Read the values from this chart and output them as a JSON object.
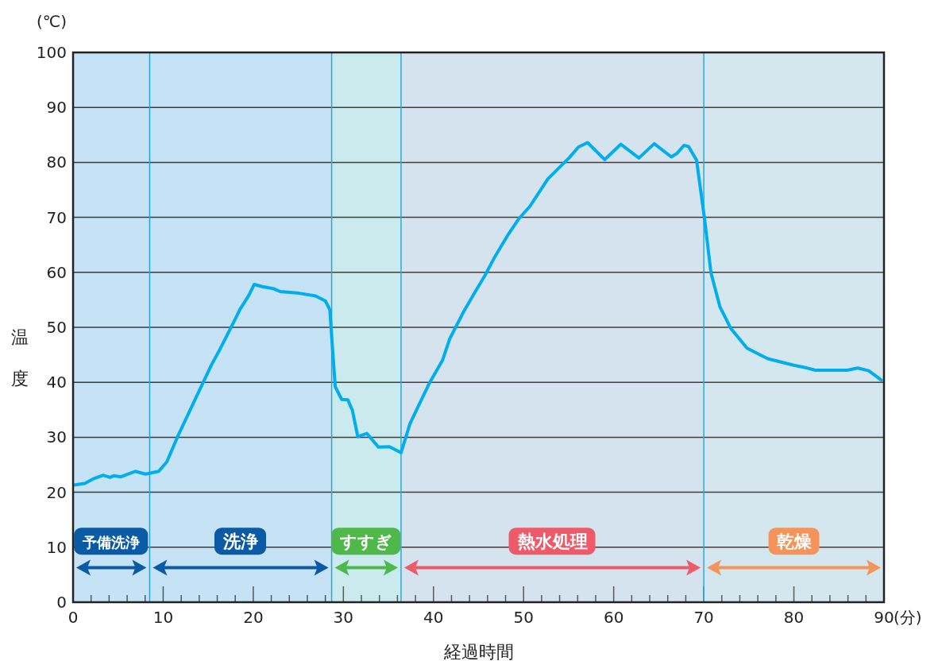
{
  "chart_data": {
    "type": "line",
    "xlabel": "経過時間",
    "ylabel": "温度",
    "annotations": [
      "(℃)",
      "(分)"
    ],
    "x": [
      0.1,
      1.3,
      2.2,
      3.35,
      4.1,
      4.5,
      5.3,
      6.9,
      8.05,
      9.5,
      10.4,
      11.6,
      14.5,
      15.4,
      16.3,
      18.0,
      18.5,
      19.5,
      20.1,
      21.0,
      22.3,
      23.0,
      25.1,
      26.9,
      28.0,
      28.5,
      28.8,
      29.1,
      29.8,
      30.5,
      31.0,
      31.6,
      32.6,
      33.9,
      35.1,
      36.4,
      37.4,
      39.5,
      41.0,
      41.8,
      43.3,
      44.5,
      45.7,
      46.8,
      48.3,
      49.5,
      50.7,
      52.7,
      55.1,
      56.1,
      57.1,
      59.0,
      60.8,
      62.8,
      64.5,
      66.4,
      67.0,
      67.8,
      68.3,
      69.2,
      70.1,
      70.8,
      71.8,
      73.0,
      74.8,
      77.1,
      80.0,
      81.2,
      82.4,
      85.9,
      87.1,
      88.3,
      89.7
    ],
    "series": [
      {
        "color": "#00aeef",
        "values": [
          21.3,
          21.6,
          22.4,
          23.1,
          22.7,
          23.0,
          22.8,
          23.8,
          23.3,
          23.8,
          25.5,
          30.1,
          40.2,
          43.3,
          46.0,
          51.5,
          53.2,
          55.8,
          57.8,
          57.4,
          57.0,
          56.5,
          56.2,
          55.7,
          54.8,
          53.2,
          46.0,
          39.2,
          36.9,
          36.8,
          34.9,
          30.1,
          30.7,
          28.2,
          28.3,
          27.2,
          32.5,
          39.7,
          44.0,
          47.9,
          52.7,
          56.1,
          59.4,
          62.8,
          66.9,
          69.8,
          72.0,
          77.0,
          80.9,
          82.8,
          83.6,
          80.5,
          83.3,
          80.8,
          83.4,
          81.0,
          81.6,
          83.1,
          82.9,
          80.4,
          69.5,
          59.9,
          53.7,
          49.8,
          46.2,
          44.3,
          43.1,
          42.7,
          42.2,
          42.2,
          42.6,
          42.1,
          40.4
        ]
      }
    ],
    "xlim": [
      0,
      90
    ],
    "ylim": [
      0,
      100
    ],
    "xticks": [
      0,
      {
        "value": 2,
        "label": null
      },
      {
        "value": 4,
        "label": null
      },
      {
        "value": 6,
        "label": null
      },
      {
        "value": 8,
        "label": null
      },
      10,
      {
        "value": 12,
        "label": null
      },
      {
        "value": 14,
        "label": null
      },
      {
        "value": 16,
        "label": null
      },
      {
        "value": 18,
        "label": null
      },
      20,
      {
        "value": 22,
        "label": null
      },
      {
        "value": 24,
        "label": null
      },
      {
        "value": 26,
        "label": null
      },
      {
        "value": 28,
        "label": null
      },
      30,
      {
        "value": 32,
        "label": null
      },
      {
        "value": 34,
        "label": null
      },
      {
        "value": 36,
        "label": null
      },
      {
        "value": 38,
        "label": null
      },
      40,
      {
        "value": 42,
        "label": null
      },
      {
        "value": 44,
        "label": null
      },
      {
        "value": 46,
        "label": null
      },
      {
        "value": 48,
        "label": null
      },
      50,
      {
        "value": 52,
        "label": null
      },
      {
        "value": 54,
        "label": null
      },
      {
        "value": 56,
        "label": null
      },
      {
        "value": 58,
        "label": null
      },
      60,
      {
        "value": 62,
        "label": null
      },
      {
        "value": 64,
        "label": null
      },
      {
        "value": 66,
        "label": null
      },
      {
        "value": 68,
        "label": null
      },
      70,
      {
        "value": 72,
        "label": null
      },
      {
        "value": 74,
        "label": null
      },
      {
        "value": 76,
        "label": null
      },
      {
        "value": 78,
        "label": null
      },
      80,
      {
        "value": 82,
        "label": null
      },
      {
        "value": 84,
        "label": null
      },
      {
        "value": 86,
        "label": null
      },
      {
        "value": 88,
        "label": null
      },
      90
    ],
    "yticks": [
      0,
      10,
      20,
      30,
      40,
      50,
      60,
      70,
      80,
      90,
      100
    ],
    "grid": "y",
    "marker": "none",
    "line_style": "solid",
    "ref_lines": [
      {
        "axis": "x",
        "value": 8.5,
        "color": "#29abe2"
      },
      {
        "axis": "x",
        "value": 28.7,
        "color": "#29abe2"
      },
      {
        "axis": "x",
        "value": 36.4,
        "color": "#29abe2"
      },
      {
        "axis": "x",
        "value": 70,
        "color": "#29abe2"
      }
    ],
    "bands": [
      {
        "axis": "x",
        "from": 0,
        "to": 8.5,
        "label": "予備洗浄",
        "color": "#0a5aa6"
      },
      {
        "axis": "x",
        "from": 8.5,
        "to": 28.7,
        "label": "洗浄",
        "color": "#0a5aa6"
      },
      {
        "axis": "x",
        "from": 28.7,
        "to": 36.4,
        "label": "すすぎ",
        "color": "#4fb84a"
      },
      {
        "axis": "x",
        "from": 36.4,
        "to": 70,
        "label": "熱水処理",
        "color": "#ef5a6a"
      },
      {
        "axis": "x",
        "from": 70,
        "to": 90,
        "label": "乾燥",
        "color": "#f5945a"
      }
    ]
  }
}
